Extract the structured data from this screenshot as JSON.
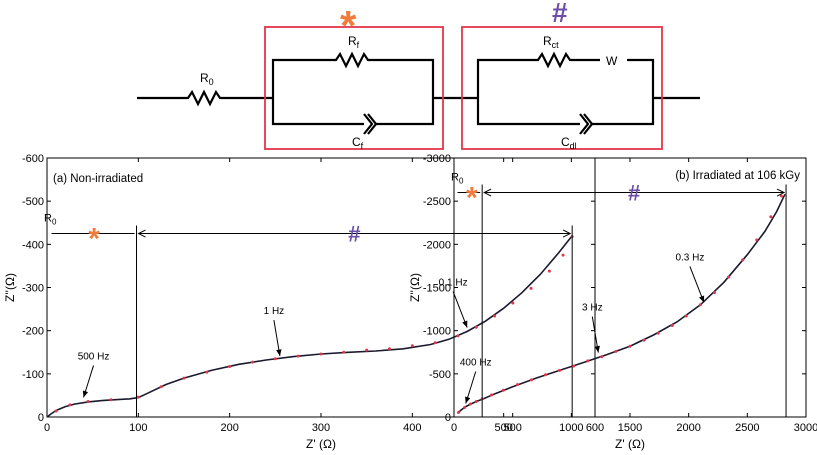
{
  "circuit": {
    "elements": [
      "R0",
      "Rf",
      "Cf",
      "Rct",
      "W",
      "Cdl"
    ],
    "box_colors": {
      "border": "#e0364a",
      "star": "#f07b3a",
      "hash": "#6b4fa8"
    },
    "labels": {
      "r0": {
        "main": "R",
        "sub": "0"
      },
      "rf": {
        "main": "R",
        "sub": "f"
      },
      "cf": {
        "main": "C",
        "sub": "f"
      },
      "rct": {
        "main": "R",
        "sub": "ct"
      },
      "w": "W",
      "cdl": {
        "main": "C",
        "sub": "dl"
      },
      "star": "*",
      "hash": "#"
    }
  },
  "chart_data": [
    {
      "type": "scatter",
      "panel_label": "(a) Non-irradiated",
      "xlabel": "Z' (Ω)",
      "ylabel": "Z''(Ω)",
      "xlim": [
        0,
        600
      ],
      "ylim": [
        0,
        -600
      ],
      "xticks": [
        0,
        100,
        200,
        300,
        400,
        500,
        600
      ],
      "yticks": [
        0,
        -100,
        -200,
        -300,
        -400,
        -500,
        -600
      ],
      "x_tick_labels": [
        "0",
        "100",
        "200",
        "300",
        "400",
        "500",
        "600"
      ],
      "y_tick_labels": [
        "0",
        "-100",
        "-200",
        "-300",
        "-400",
        "-500",
        "-600"
      ],
      "series": [
        {
          "style": "fit-line",
          "x": [
            0,
            5,
            10,
            20,
            30,
            45,
            60,
            75,
            90,
            100,
            110,
            130,
            150,
            180,
            210,
            240,
            270,
            300,
            330,
            360,
            390,
            420,
            440,
            460,
            480,
            500,
            520,
            540,
            560,
            575
          ],
          "y": [
            0,
            -8,
            -15,
            -24,
            -30,
            -35,
            -38,
            -40,
            -42,
            -45,
            -55,
            -75,
            -90,
            -108,
            -122,
            -132,
            -140,
            -146,
            -150,
            -153,
            -158,
            -168,
            -180,
            -198,
            -222,
            -252,
            -288,
            -330,
            -380,
            -420
          ]
        },
        {
          "style": "data-points",
          "x": [
            10,
            25,
            45,
            70,
            100,
            125,
            150,
            175,
            200,
            225,
            250,
            275,
            300,
            325,
            350,
            375,
            400,
            425,
            450,
            470,
            490,
            510,
            530,
            550,
            565,
            575
          ],
          "y": [
            -14,
            -28,
            -36,
            -40,
            -46,
            -70,
            -90,
            -104,
            -117,
            -127,
            -135,
            -141,
            -146,
            -150,
            -155,
            -158,
            -165,
            -172,
            -188,
            -208,
            -234,
            -264,
            -298,
            -338,
            -375,
            -418
          ]
        }
      ],
      "annotations": [
        {
          "text": "500 Hz",
          "x": 40,
          "y": -36
        },
        {
          "text": "1 Hz",
          "x": 255,
          "y": -132
        },
        {
          "text": "0.1 Hz",
          "x": 460,
          "y": -198
        }
      ],
      "markers": {
        "r0_label": {
          "main": "R",
          "sub": "0"
        },
        "r0_x": 5,
        "star_end_x": 98,
        "arc_end_x": 575,
        "bracket_y": -425,
        "star": "*",
        "hash": "#"
      }
    },
    {
      "type": "scatter",
      "panel_label": "(b) Irradiated at 106 kGy",
      "xlabel": "Z' (Ω)",
      "ylabel": "Z''(Ω)",
      "xlim": [
        0,
        3000
      ],
      "ylim": [
        0,
        -3000
      ],
      "xticks": [
        0,
        500,
        1000,
        1500,
        2000,
        2500,
        3000
      ],
      "yticks": [
        0,
        -500,
        -1000,
        -1500,
        -2000,
        -2500,
        -3000
      ],
      "x_tick_labels": [
        "0",
        "500",
        "1000",
        "1500",
        "2000",
        "2500",
        "3000"
      ],
      "y_tick_labels": [
        "0",
        "-500",
        "-1000",
        "-1500",
        "-2000",
        "-2500",
        "-3000"
      ],
      "series": [
        {
          "style": "fit-line",
          "x": [
            30,
            60,
            100,
            150,
            200,
            250,
            350,
            500,
            700,
            900,
            1100,
            1300,
            1500,
            1700,
            1900,
            2100,
            2300,
            2500,
            2650,
            2750,
            2820
          ],
          "y": [
            -40,
            -80,
            -120,
            -155,
            -185,
            -210,
            -270,
            -350,
            -450,
            -540,
            -630,
            -720,
            -820,
            -950,
            -1100,
            -1300,
            -1560,
            -1880,
            -2150,
            -2380,
            -2580
          ]
        },
        {
          "style": "data-points",
          "x": [
            40,
            90,
            140,
            190,
            240,
            320,
            420,
            540,
            660,
            780,
            900,
            1020,
            1140,
            1260,
            1380,
            1500,
            1620,
            1740,
            1860,
            1980,
            2100,
            2220,
            2340,
            2460,
            2580,
            2700,
            2790
          ],
          "y": [
            -55,
            -110,
            -150,
            -180,
            -210,
            -255,
            -310,
            -375,
            -430,
            -490,
            -540,
            -590,
            -650,
            -700,
            -760,
            -820,
            -890,
            -970,
            -1060,
            -1170,
            -1300,
            -1440,
            -1620,
            -1820,
            -2050,
            -2320,
            -2560
          ]
        }
      ],
      "annotations": [
        {
          "text": "400 Hz",
          "x": 100,
          "y": -110
        },
        {
          "text": "3 Hz",
          "x": 1230,
          "y": -700
        },
        {
          "text": "0.3 Hz",
          "x": 2130,
          "y": -1280
        }
      ],
      "markers": {
        "r0_label": {
          "main": "R",
          "sub": "0"
        },
        "r0_x": 30,
        "star_end_x": 240,
        "arc_end_x": 2830,
        "bracket_y": -2600,
        "star": "*",
        "hash": "#"
      }
    }
  ]
}
